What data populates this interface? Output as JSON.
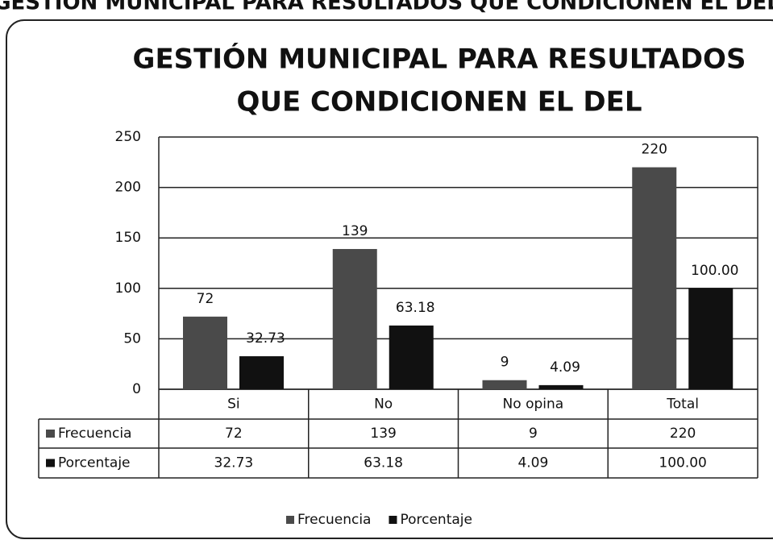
{
  "heading": "GESTIÓN MUNICIPAL PARA RESULTADOS QUE CONDICIONEN EL DEL",
  "chart_data": {
    "type": "bar",
    "title_lines": [
      "GESTIÓN MUNICIPAL PARA RESULTADOS",
      "QUE CONDICIONEN EL DEL"
    ],
    "categories": [
      "Si",
      "No",
      "No opina",
      "Total"
    ],
    "series": [
      {
        "name": "Frecuencia",
        "color": "#4a4a4a",
        "values": [
          72,
          139,
          9,
          220
        ]
      },
      {
        "name": "Porcentaje",
        "color": "#111111",
        "values": [
          32.73,
          63.18,
          4.09,
          100
        ],
        "value_labels": [
          "32.73",
          "63.18",
          "4.09",
          "100.00"
        ]
      }
    ],
    "ylim": [
      0,
      250
    ],
    "yticks": [
      0,
      50,
      100,
      150,
      200,
      250
    ],
    "grid": true,
    "legend": "bottom"
  }
}
